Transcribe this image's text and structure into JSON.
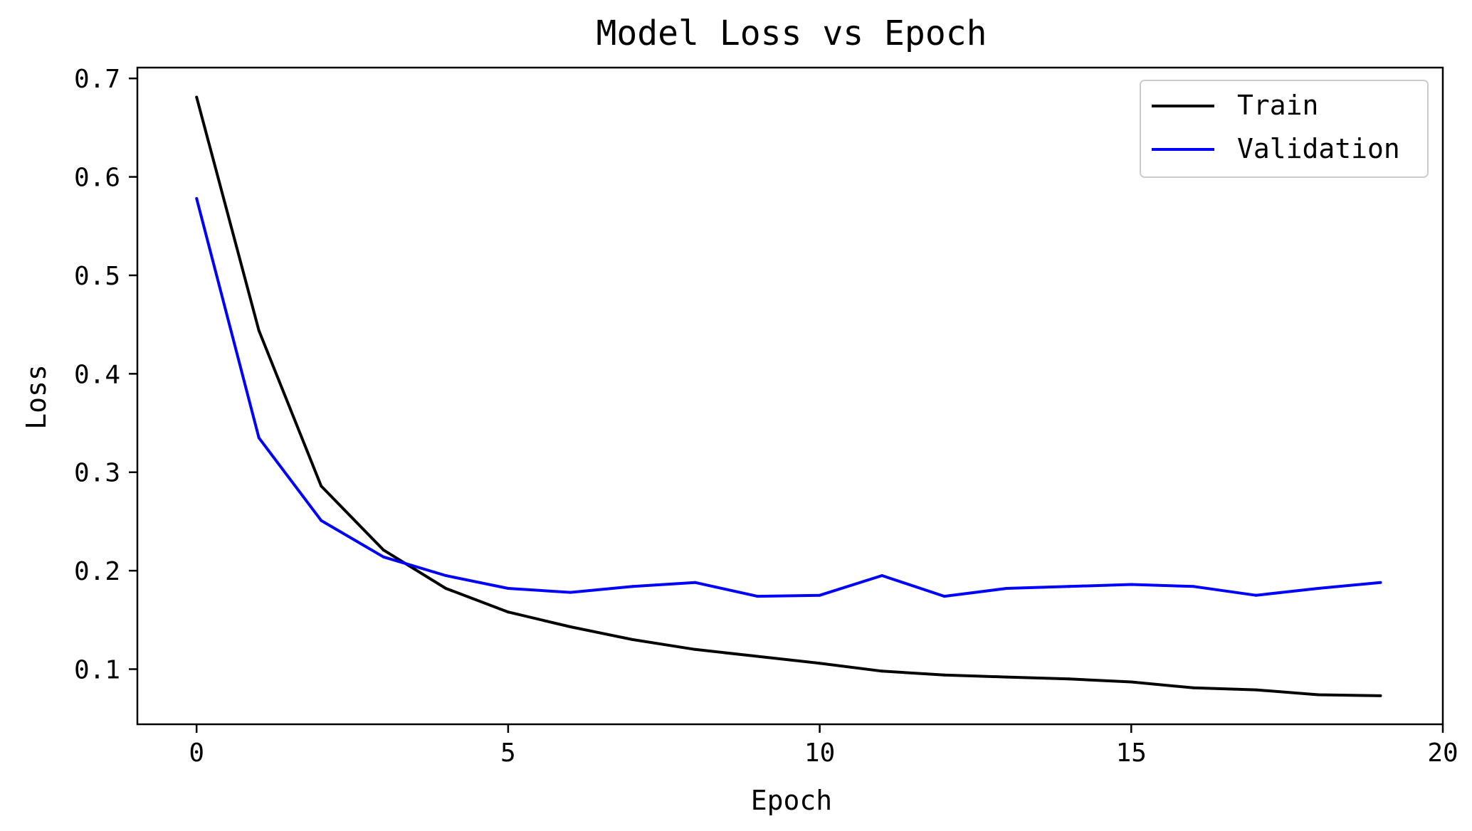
{
  "chart_data": {
    "type": "line",
    "title": "Model Loss vs Epoch",
    "xlabel": "Epoch",
    "ylabel": "Loss",
    "xlim": [
      -0.95,
      20
    ],
    "ylim": [
      0.044,
      0.711
    ],
    "xticks": [
      0,
      5,
      10,
      15,
      20
    ],
    "yticks": [
      0.1,
      0.2,
      0.3,
      0.4,
      0.5,
      0.6,
      0.7
    ],
    "xtick_labels": [
      "0",
      "5",
      "10",
      "15",
      "20"
    ],
    "ytick_labels": [
      "0.1",
      "0.2",
      "0.3",
      "0.4",
      "0.5",
      "0.6",
      "0.7"
    ],
    "grid": false,
    "legend_position": "top-right",
    "x": [
      0,
      1,
      2,
      3,
      4,
      5,
      6,
      7,
      8,
      9,
      10,
      11,
      12,
      13,
      14,
      15,
      16,
      17,
      18,
      19
    ],
    "series": [
      {
        "name": "Train",
        "color": "#000000",
        "values": [
          0.681,
          0.444,
          0.286,
          0.221,
          0.182,
          0.158,
          0.143,
          0.13,
          0.12,
          0.113,
          0.106,
          0.098,
          0.094,
          0.092,
          0.09,
          0.087,
          0.081,
          0.079,
          0.074,
          0.073
        ]
      },
      {
        "name": "Validation",
        "color": "#0000ff",
        "values": [
          0.578,
          0.335,
          0.251,
          0.214,
          0.195,
          0.182,
          0.178,
          0.184,
          0.188,
          0.174,
          0.175,
          0.195,
          0.174,
          0.182,
          0.184,
          0.186,
          0.184,
          0.175,
          0.182,
          0.188
        ]
      }
    ]
  }
}
